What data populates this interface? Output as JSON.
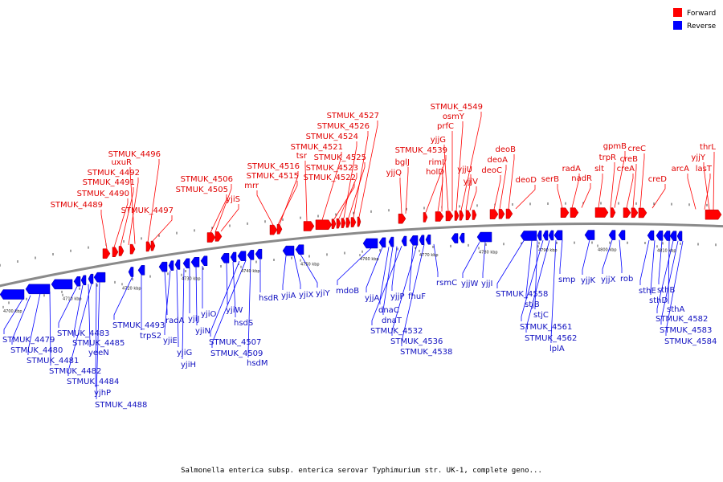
{
  "caption": "Salmonella enterica subsp. enterica serovar Typhimurium str. UK-1, complete geno...",
  "legend": [
    {
      "label": "Forward",
      "color": "#ff0000"
    },
    {
      "label": "Reverse",
      "color": "#0000ff"
    }
  ],
  "colors": {
    "forward": "#ff0000",
    "reverse": "#0000ff",
    "backbone": "#808080"
  },
  "scale_ticks": [
    {
      "label": "4700 kbp",
      "pos": 4700
    },
    {
      "label": "4710 kbp",
      "pos": 4710
    },
    {
      "label": "4720 kbp",
      "pos": 4720
    },
    {
      "label": "4730 kbp",
      "pos": 4730
    },
    {
      "label": "4740 kbp",
      "pos": 4740
    },
    {
      "label": "4750 kbp",
      "pos": 4750
    },
    {
      "label": "4760 kbp",
      "pos": 4760
    },
    {
      "label": "4770 kbp",
      "pos": 4770
    },
    {
      "label": "4780 kbp",
      "pos": 4780
    },
    {
      "label": "4790 kbp",
      "pos": 4790
    },
    {
      "label": "4800 kbp",
      "pos": 4800
    },
    {
      "label": "4810 kbp",
      "pos": 4810
    }
  ],
  "forward_labels": [
    {
      "text": "STMUK_4489"
    },
    {
      "text": "STMUK_4490"
    },
    {
      "text": "STMUK_4491"
    },
    {
      "text": "STMUK_4492"
    },
    {
      "text": "uxuR"
    },
    {
      "text": "STMUK_4496"
    },
    {
      "text": "STMUK_4497"
    },
    {
      "text": "STMUK_4505"
    },
    {
      "text": "STMUK_4506"
    },
    {
      "text": "yjiS"
    },
    {
      "text": "mrr"
    },
    {
      "text": "STMUK_4515"
    },
    {
      "text": "STMUK_4516"
    },
    {
      "text": "tsr"
    },
    {
      "text": "STMUK_4521"
    },
    {
      "text": "STMUK_4522"
    },
    {
      "text": "STMUK_4523"
    },
    {
      "text": "STMUK_4524"
    },
    {
      "text": "STMUK_4525"
    },
    {
      "text": "STMUK_4526"
    },
    {
      "text": "STMUK_4527"
    },
    {
      "text": "yjjQ"
    },
    {
      "text": "bglJ"
    },
    {
      "text": "STMUK_4539"
    },
    {
      "text": "holD"
    },
    {
      "text": "rimI"
    },
    {
      "text": "yjjG"
    },
    {
      "text": "prfC"
    },
    {
      "text": "osmY"
    },
    {
      "text": "STMUK_4549"
    },
    {
      "text": "yjjU"
    },
    {
      "text": "yjjV"
    },
    {
      "text": "deoC"
    },
    {
      "text": "deoA"
    },
    {
      "text": "deoB"
    },
    {
      "text": "deoD"
    },
    {
      "text": "serB"
    },
    {
      "text": "radA"
    },
    {
      "text": "nadR"
    },
    {
      "text": "slt"
    },
    {
      "text": "trpR"
    },
    {
      "text": "gpmB"
    },
    {
      "text": "creA"
    },
    {
      "text": "creB"
    },
    {
      "text": "creC"
    },
    {
      "text": "creD"
    },
    {
      "text": "arcA"
    },
    {
      "text": "lasT"
    },
    {
      "text": "yjjY"
    },
    {
      "text": "thrL"
    }
  ],
  "reverse_labels": [
    {
      "text": "STMUK_4479"
    },
    {
      "text": "STMUK_4480"
    },
    {
      "text": "STMUK_4481"
    },
    {
      "text": "STMUK_4482"
    },
    {
      "text": "STMUK_4483"
    },
    {
      "text": "STMUK_4485"
    },
    {
      "text": "yeeN"
    },
    {
      "text": "STMUK_4484"
    },
    {
      "text": "yjhP"
    },
    {
      "text": "STMUK_4488"
    },
    {
      "text": "STMUK_4493"
    },
    {
      "text": "trpS2"
    },
    {
      "text": "radA"
    },
    {
      "text": "yjiE"
    },
    {
      "text": "yjiG"
    },
    {
      "text": "yjiH"
    },
    {
      "text": "yjiJ"
    },
    {
      "text": "yjiN"
    },
    {
      "text": "yjiO"
    },
    {
      "text": "yjiW"
    },
    {
      "text": "hsdS"
    },
    {
      "text": "STMUK_4507"
    },
    {
      "text": "STMUK_4509"
    },
    {
      "text": "hsdM"
    },
    {
      "text": "hsdR"
    },
    {
      "text": "yjiA"
    },
    {
      "text": "yjiX"
    },
    {
      "text": "yjiY"
    },
    {
      "text": "mdoB"
    },
    {
      "text": "yjjA"
    },
    {
      "text": "dnaC"
    },
    {
      "text": "dnaT"
    },
    {
      "text": "yjjP"
    },
    {
      "text": "STMUK_4532"
    },
    {
      "text": "fhuF"
    },
    {
      "text": "STMUK_4536"
    },
    {
      "text": "STMUK_4538"
    },
    {
      "text": "rsmC"
    },
    {
      "text": "yjjW"
    },
    {
      "text": "yjjI"
    },
    {
      "text": "STMUK_4558"
    },
    {
      "text": "stjB"
    },
    {
      "text": "stjC"
    },
    {
      "text": "STMUK_4561"
    },
    {
      "text": "STMUK_4562"
    },
    {
      "text": "lplA"
    },
    {
      "text": "smp"
    },
    {
      "text": "yjjK"
    },
    {
      "text": "yjjX"
    },
    {
      "text": "rob"
    },
    {
      "text": "sthE"
    },
    {
      "text": "sthD"
    },
    {
      "text": "sthB"
    },
    {
      "text": "sthA"
    },
    {
      "text": "STMUK_4582"
    },
    {
      "text": "STMUK_4583"
    },
    {
      "text": "STMUK_4584"
    }
  ]
}
